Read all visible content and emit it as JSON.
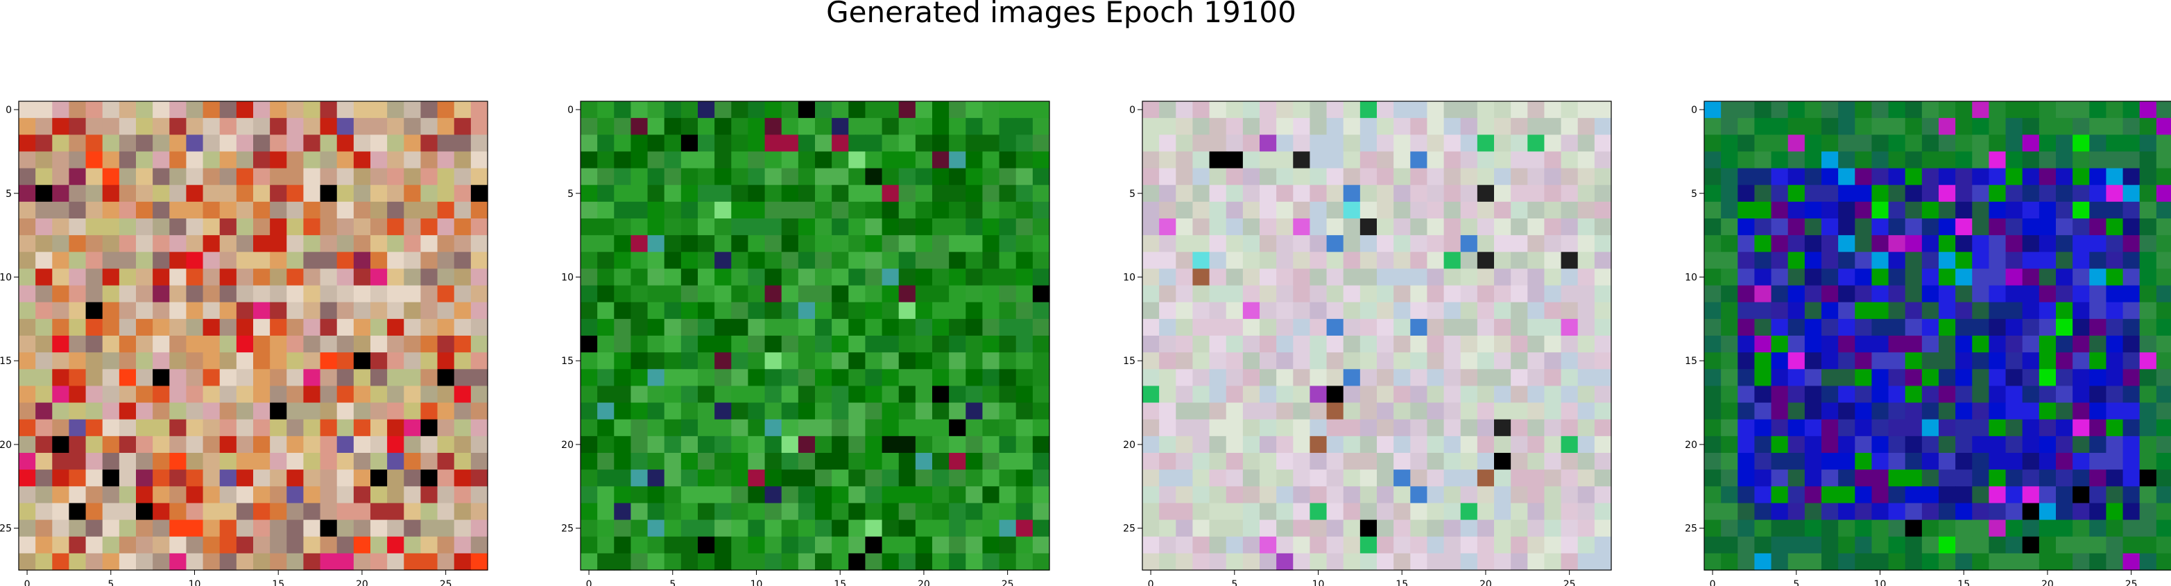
{
  "title": "Generated images Epoch 19100",
  "chart_data": [
    {
      "type": "heatmap",
      "name": "generated-image-1",
      "xticks": [
        "0",
        "5",
        "10",
        "15",
        "20",
        "25"
      ],
      "yticks": [
        "0",
        "5",
        "10",
        "15",
        "20",
        "25"
      ],
      "xlim": [
        -0.5,
        27.5
      ],
      "ylim": [
        27.5,
        -0.5
      ],
      "grid": 28,
      "palette": [
        "#c9a08a",
        "#d4b089",
        "#e0c28a",
        "#b8a070",
        "#c8906a",
        "#dc9a8a",
        "#b0a888",
        "#c8c078",
        "#e0a060",
        "#d87838",
        "#e05020",
        "#c82010",
        "#a83030",
        "#d8c8b8",
        "#e8d8c8",
        "#b8c088",
        "#d8a8b0",
        "#8a6a6a",
        "#a89080",
        "#c8b8a8"
      ],
      "accent": [
        "#000000",
        "#e81020",
        "#8a2050",
        "#6050a0",
        "#e02080",
        "#ff4010"
      ]
    },
    {
      "type": "heatmap",
      "name": "generated-image-2",
      "xticks": [
        "0",
        "5",
        "10",
        "15",
        "20",
        "25"
      ],
      "yticks": [
        "0",
        "5",
        "10",
        "15",
        "20",
        "25"
      ],
      "xlim": [
        -0.5,
        27.5
      ],
      "ylim": [
        27.5,
        -0.5
      ],
      "grid": 28,
      "palette": [
        "#108010",
        "#209020",
        "#007000",
        "#30a030",
        "#0a6a0a",
        "#40b040",
        "#1a8a1a",
        "#208a30",
        "#005a00",
        "#2aa02a",
        "#50b050",
        "#0a8a0a",
        "#3a903a",
        "#107a20"
      ],
      "accent": [
        "#000000",
        "#002000",
        "#202060",
        "#a01040",
        "#40a0a0",
        "#601030",
        "#80e080"
      ]
    },
    {
      "type": "heatmap",
      "name": "generated-image-3",
      "xticks": [
        "0",
        "5",
        "10",
        "15",
        "20",
        "25"
      ],
      "yticks": [
        "0",
        "5",
        "10",
        "15",
        "20",
        "25"
      ],
      "xlim": [
        -0.5,
        27.5
      ],
      "ylim": [
        27.5,
        -0.5
      ],
      "grid": 28,
      "palette": [
        "#d8c8d8",
        "#e0d0e0",
        "#c8d8c0",
        "#d0e0c8",
        "#e0e8d8",
        "#c8b8d0",
        "#d8b8c8",
        "#c0d0e0",
        "#e8d8e8",
        "#b8c8b8",
        "#d0c0c0",
        "#c8e0d0",
        "#e0c8d8",
        "#d8d8c8"
      ],
      "accent": [
        "#000000",
        "#e060e0",
        "#20c060",
        "#a040c0",
        "#60e0e0",
        "#a06040",
        "#4080d0",
        "#202020"
      ]
    },
    {
      "type": "heatmap",
      "name": "generated-image-4",
      "xticks": [
        "0",
        "5",
        "10",
        "15",
        "20",
        "25"
      ],
      "yticks": [
        "0",
        "5",
        "10",
        "15",
        "20",
        "25"
      ],
      "xlim": [
        -0.5,
        27.5
      ],
      "ylim": [
        27.5,
        -0.5
      ],
      "grid": 28,
      "palette": [
        "#108020",
        "#208a30",
        "#0a6a30",
        "#309040",
        "#106a50",
        "#2a7a4a",
        "#00802a"
      ],
      "inner_palette": [
        "#1010c0",
        "#2020e0",
        "#101080",
        "#3020a0",
        "#0010d0",
        "#2a2aa0",
        "#600080",
        "#4040c0",
        "#102a80",
        "#00a000",
        "#206040"
      ],
      "accent": [
        "#000000",
        "#e020e0",
        "#a000c0",
        "#00a0e0",
        "#00e000",
        "#c020c0"
      ]
    }
  ]
}
